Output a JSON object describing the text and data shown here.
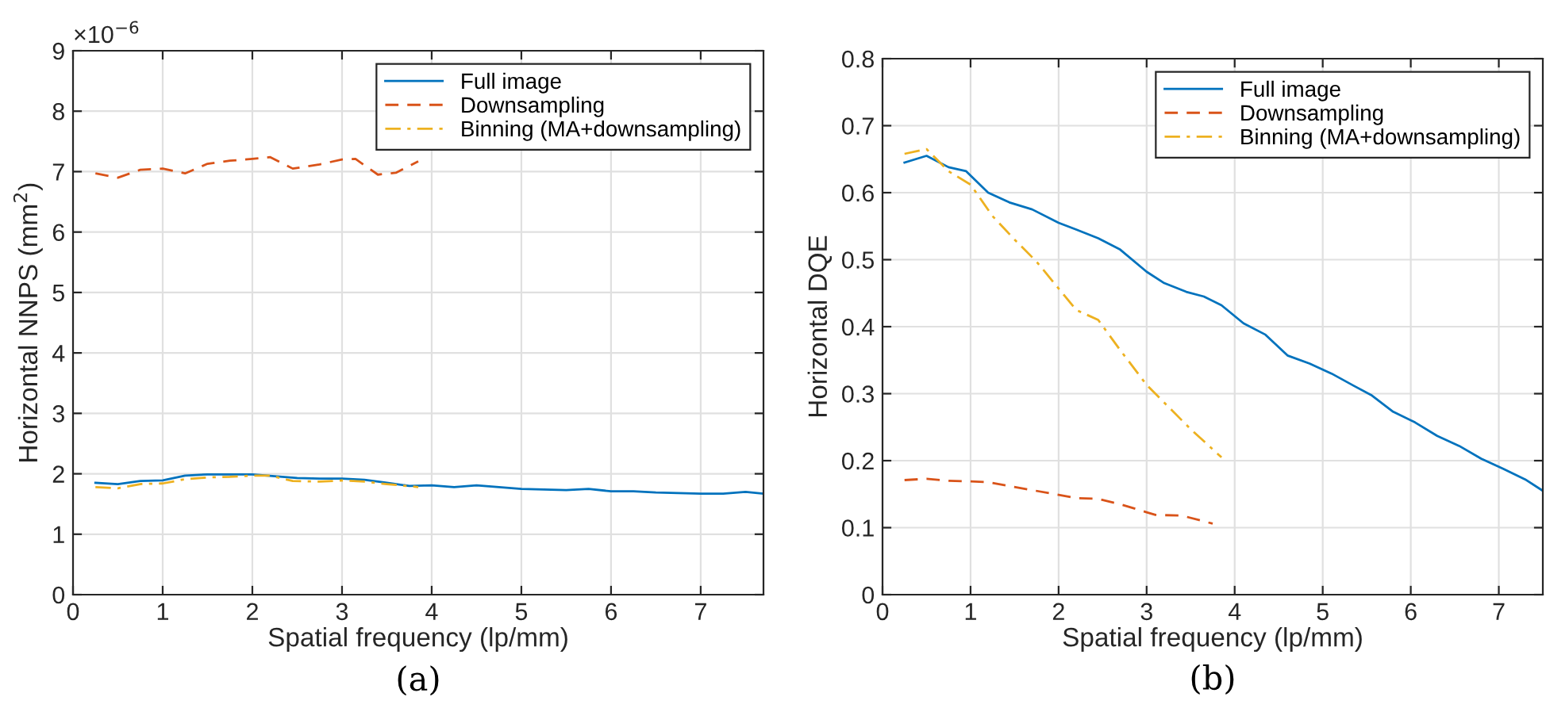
{
  "chart_data": [
    {
      "type": "line",
      "xlabel": "Spatial frequency (lp/mm)",
      "ylabel": "Horizontal NNPS (mm$^{2}$)",
      "xlim": [
        0,
        7.7
      ],
      "xticks": [
        0,
        1,
        2,
        3,
        4,
        5,
        6,
        7
      ],
      "ylim": [
        0,
        9
      ],
      "yticks": [
        0,
        1,
        2,
        3,
        4,
        5,
        6,
        7,
        8,
        9
      ],
      "grid": true,
      "legend": "top right",
      "annotations": [
        "×10$^{−6}$",
        "(a)"
      ],
      "series": [
        {
          "name": "Full image",
          "color": "#0072bd",
          "line_style": "solid",
          "x": [
            0.25,
            0.5,
            0.75,
            1.0,
            1.25,
            1.5,
            1.75,
            2.0,
            2.25,
            2.5,
            2.75,
            3.0,
            3.25,
            3.5,
            3.75,
            4.0,
            4.25,
            4.5,
            4.75,
            5.0,
            5.25,
            5.5,
            5.75,
            6.0,
            6.25,
            6.5,
            6.75,
            7.0,
            7.25,
            7.5,
            7.7
          ],
          "values": [
            1.85,
            1.83,
            1.88,
            1.89,
            1.97,
            1.99,
            1.99,
            1.99,
            1.96,
            1.93,
            1.92,
            1.92,
            1.9,
            1.85,
            1.8,
            1.81,
            1.78,
            1.81,
            1.78,
            1.75,
            1.74,
            1.73,
            1.75,
            1.71,
            1.71,
            1.69,
            1.68,
            1.67,
            1.67,
            1.7,
            1.67
          ]
        },
        {
          "name": "Downsampling",
          "color": "#d95319",
          "line_style": "dashed",
          "x": [
            0.25,
            0.5,
            0.75,
            1.0,
            1.25,
            1.5,
            1.75,
            2.0,
            2.2,
            2.45,
            2.75,
            3.0,
            3.15,
            3.4,
            3.6,
            3.85
          ],
          "values": [
            6.97,
            6.9,
            7.03,
            7.05,
            6.97,
            7.13,
            7.18,
            7.21,
            7.24,
            7.05,
            7.12,
            7.2,
            7.21,
            6.95,
            6.98,
            7.17
          ]
        },
        {
          "name": "Binning (MA+downsampling)",
          "color": "#edb120",
          "line_style": "dashdot",
          "x": [
            0.25,
            0.5,
            0.75,
            1.0,
            1.25,
            1.5,
            1.75,
            2.0,
            2.2,
            2.45,
            2.75,
            3.0,
            3.25,
            3.5,
            3.85
          ],
          "values": [
            1.78,
            1.76,
            1.83,
            1.84,
            1.91,
            1.94,
            1.95,
            1.97,
            1.97,
            1.88,
            1.87,
            1.89,
            1.87,
            1.83,
            1.78
          ]
        }
      ]
    },
    {
      "type": "line",
      "xlabel": "Spatial frequency (lp/mm)",
      "ylabel": "Horizontal DQE",
      "xlim": [
        0,
        7.5
      ],
      "xticks": [
        0,
        1,
        2,
        3,
        4,
        5,
        6,
        7
      ],
      "ylim": [
        0,
        0.8
      ],
      "yticks": [
        0,
        0.1,
        0.2,
        0.3,
        0.4,
        0.5,
        0.6,
        0.7,
        0.8
      ],
      "grid": true,
      "legend": "top right",
      "annotations": [
        "(b)"
      ],
      "series": [
        {
          "name": "Full image",
          "color": "#0072bd",
          "line_style": "solid",
          "x": [
            0.25,
            0.5,
            0.75,
            0.95,
            1.2,
            1.45,
            1.7,
            2.0,
            2.2,
            2.45,
            2.7,
            3.0,
            3.2,
            3.45,
            3.65,
            3.85,
            4.1,
            4.35,
            4.6,
            4.85,
            5.1,
            5.35,
            5.55,
            5.8,
            6.05,
            6.3,
            6.55,
            6.8,
            7.05,
            7.3,
            7.5
          ],
          "values": [
            0.645,
            0.655,
            0.638,
            0.632,
            0.6,
            0.585,
            0.575,
            0.555,
            0.545,
            0.532,
            0.515,
            0.482,
            0.465,
            0.452,
            0.445,
            0.432,
            0.405,
            0.388,
            0.357,
            0.345,
            0.33,
            0.312,
            0.298,
            0.273,
            0.257,
            0.237,
            0.222,
            0.203,
            0.188,
            0.172,
            0.155
          ]
        },
        {
          "name": "Downsampling",
          "color": "#d95319",
          "line_style": "dashed",
          "x": [
            0.25,
            0.5,
            0.75,
            1.0,
            1.2,
            1.45,
            1.7,
            2.0,
            2.2,
            2.45,
            2.7,
            3.0,
            3.1,
            3.4,
            3.75
          ],
          "values": [
            0.171,
            0.173,
            0.17,
            0.169,
            0.168,
            0.162,
            0.156,
            0.149,
            0.144,
            0.143,
            0.135,
            0.123,
            0.119,
            0.118,
            0.106
          ]
        },
        {
          "name": "Binning (MA+downsampling)",
          "color": "#edb120",
          "line_style": "dashdot",
          "x": [
            0.25,
            0.5,
            0.75,
            1.0,
            1.25,
            1.5,
            1.75,
            2.0,
            2.2,
            2.45,
            2.7,
            3.0,
            3.25,
            3.5,
            3.85
          ],
          "values": [
            0.658,
            0.665,
            0.632,
            0.612,
            0.565,
            0.53,
            0.497,
            0.457,
            0.425,
            0.41,
            0.365,
            0.313,
            0.28,
            0.247,
            0.205
          ]
        }
      ]
    }
  ]
}
